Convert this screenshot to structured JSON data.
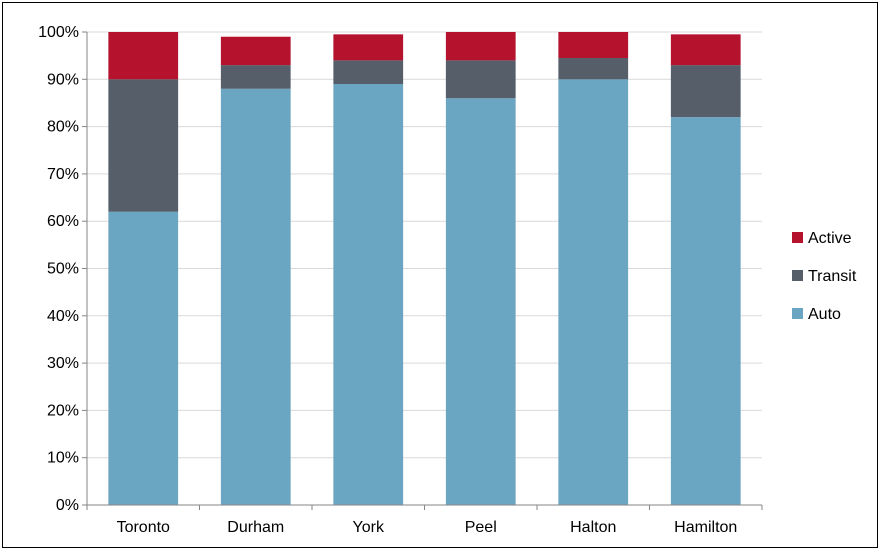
{
  "chart_data": {
    "type": "bar",
    "stacked": true,
    "title": "",
    "xlabel": "",
    "ylabel": "",
    "categories": [
      "Toronto",
      "Durham",
      "York",
      "Peel",
      "Halton",
      "Hamilton"
    ],
    "series": [
      {
        "name": "Auto",
        "color": "#6aa5c1",
        "values": [
          62,
          88,
          89,
          86,
          90,
          82
        ]
      },
      {
        "name": "Transit",
        "color": "#555e69",
        "values": [
          28,
          5,
          5,
          8,
          4.5,
          11
        ]
      },
      {
        "name": "Active",
        "color": "#b5122e",
        "values": [
          10,
          6,
          5.5,
          6,
          5.5,
          6.5
        ]
      }
    ],
    "ylim": [
      0,
      100
    ],
    "ytick_values": [
      0,
      10,
      20,
      30,
      40,
      50,
      60,
      70,
      80,
      90,
      100
    ],
    "ytick_labels": [
      "0%",
      "10%",
      "20%",
      "30%",
      "40%",
      "50%",
      "60%",
      "70%",
      "80%",
      "90%",
      "100%"
    ],
    "grid": true,
    "legend": {
      "position": "right",
      "entries": [
        "Active",
        "Transit",
        "Auto"
      ]
    }
  }
}
